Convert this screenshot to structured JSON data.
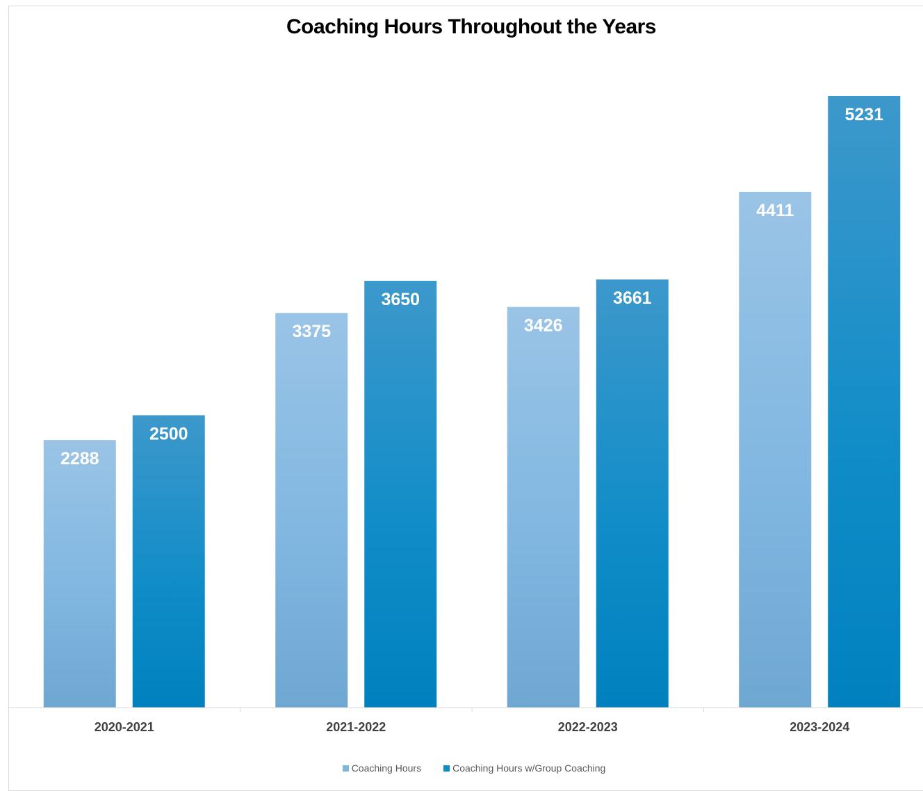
{
  "chart_data": {
    "type": "bar",
    "title": "Coaching Hours Throughout the Years",
    "xlabel": "",
    "ylabel": "",
    "categories": [
      "2020-2021",
      "2021-2022",
      "2022-2023",
      "2023-2024"
    ],
    "series": [
      {
        "name": "Coaching Hours",
        "values": [
          2288,
          3375,
          3426,
          4411
        ],
        "color": "#7fb6e0",
        "color_top": "#9ac4e6",
        "color_bottom": "#6fa7d3"
      },
      {
        "name": "Coaching Hours w/Group Coaching",
        "values": [
          2500,
          3650,
          3661,
          5231
        ],
        "color": "#0f8cc8",
        "color_top": "#3d98cb",
        "color_bottom": "#0081be"
      }
    ],
    "data_labels": true,
    "grid": false,
    "legend": "bottom",
    "value_axis_shown": false
  }
}
